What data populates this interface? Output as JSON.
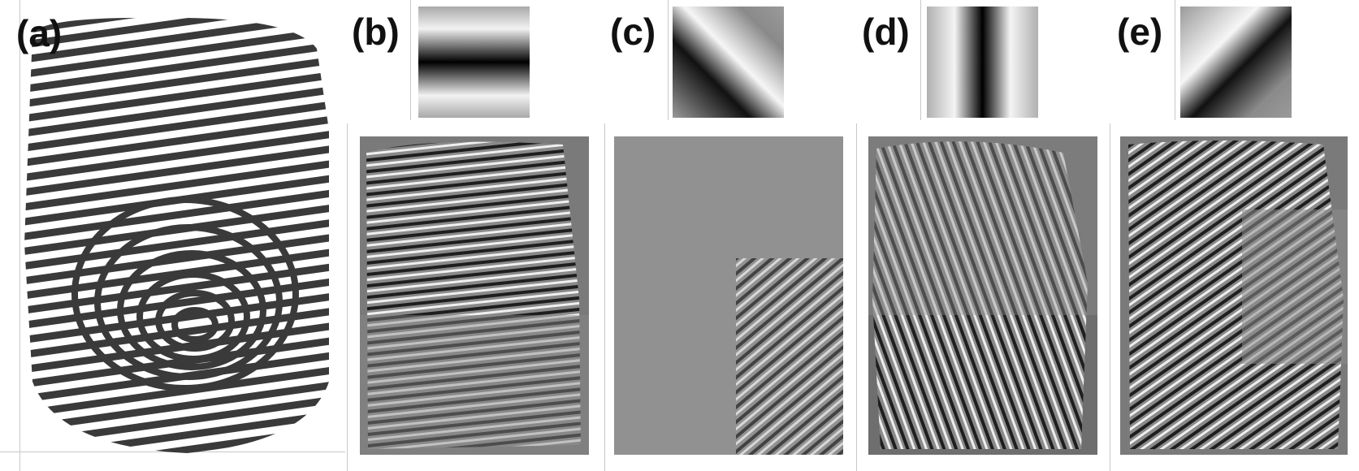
{
  "figure": {
    "panels": [
      {
        "id": "a",
        "label": "(a)",
        "content": "binarized-fingerprint"
      },
      {
        "id": "b",
        "label": "(b)",
        "content": "horizontal-gabor-response",
        "kernel_orientation_deg": 0
      },
      {
        "id": "c",
        "label": "(c)",
        "content": "diagonal-gabor-response",
        "kernel_orientation_deg": 135
      },
      {
        "id": "d",
        "label": "(d)",
        "content": "vertical-gabor-response",
        "kernel_orientation_deg": 90
      },
      {
        "id": "e",
        "label": "(e)",
        "content": "diagonal-gabor-response",
        "kernel_orientation_deg": 45
      }
    ],
    "colors": {
      "background": "#ffffff",
      "ridge_dark": "#3a3a3a",
      "filtered_bg": "#7a7a7a",
      "kernel_bg": "#9a9a9a"
    }
  }
}
